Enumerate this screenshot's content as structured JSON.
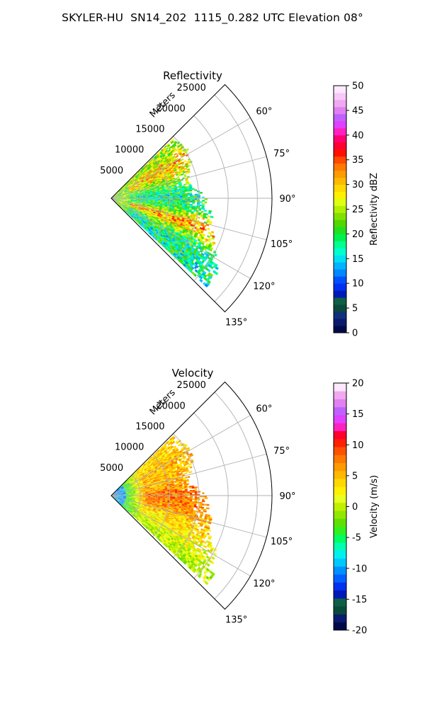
{
  "figure": {
    "suptitle": "SKYLER-HU  SN14_202  1115_0.282 UTC Elevation 08°"
  },
  "colors": {
    "reflectivity_scale": [
      "#000a4a",
      "#0b1a6e",
      "#10307a",
      "#0a4a3a",
      "#0e5f46",
      "#0018b8",
      "#0030f0",
      "#0050ff",
      "#0088ff",
      "#00b4ff",
      "#00e0f0",
      "#00ffd0",
      "#00ff90",
      "#00f050",
      "#20e020",
      "#50d800",
      "#80e000",
      "#b0f000",
      "#dfff10",
      "#fff000",
      "#ffd800",
      "#ffb800",
      "#ff9a00",
      "#ff7800",
      "#ff4800",
      "#ff1000",
      "#ff0030",
      "#ff0070",
      "#ff20c0",
      "#e040ff",
      "#c060ff",
      "#e080f0",
      "#f0a8f0",
      "#f8c8f8",
      "#fde8fd"
    ],
    "velocity_scale": [
      "#000a4a",
      "#0b1a6e",
      "#0a4a3a",
      "#0e5f46",
      "#0018b8",
      "#0030f0",
      "#0060ff",
      "#0090ff",
      "#00c8ff",
      "#00f0f0",
      "#00ffb0",
      "#00ff60",
      "#30f020",
      "#60e000",
      "#90e800",
      "#c0f000",
      "#e8ff20",
      "#fff000",
      "#ffd800",
      "#ffb800",
      "#ff9a00",
      "#ff7800",
      "#ff5000",
      "#ff2000",
      "#ff0030",
      "#ff20c0",
      "#e040ff",
      "#c060ff",
      "#e080f0",
      "#f0a8f0",
      "#fde8fd"
    ]
  },
  "chart_data": [
    {
      "type": "heatmap",
      "projection": "polar-sector",
      "title": "Reflectivity",
      "radial_label": "Meters",
      "radial_ticks": [
        5000,
        10000,
        15000,
        20000,
        25000
      ],
      "radial_range": [
        0,
        27500
      ],
      "angle_ticks_deg": [
        60,
        75,
        90,
        105,
        120,
        135
      ],
      "angle_tick_labels": [
        "60°",
        "75°",
        "90°",
        "105°",
        "120°",
        "135°"
      ],
      "angle_range_deg": [
        45,
        135
      ],
      "grid": true,
      "colorbar": {
        "label": "Reflectivity dBZ",
        "range": [
          0,
          50
        ],
        "ticks": [
          0,
          5,
          10,
          15,
          20,
          25,
          30,
          35,
          40,
          45,
          50
        ]
      },
      "approx_field": [
        {
          "az_deg": 52,
          "r_max_m": 15000,
          "value": 25
        },
        {
          "az_deg": 60,
          "r_max_m": 15500,
          "value": 30
        },
        {
          "az_deg": 68,
          "r_max_m": 14500,
          "value": 28
        },
        {
          "az_deg": 78,
          "r_max_m": 13000,
          "value": 22
        },
        {
          "az_deg": 88,
          "r_max_m": 16000,
          "value": 18
        },
        {
          "az_deg": 98,
          "r_max_m": 17000,
          "value": 20
        },
        {
          "az_deg": 108,
          "r_max_m": 18000,
          "value": 33
        },
        {
          "az_deg": 118,
          "r_max_m": 20500,
          "value": 20
        },
        {
          "az_deg": 126,
          "r_max_m": 22000,
          "value": 18
        }
      ]
    },
    {
      "type": "heatmap",
      "projection": "polar-sector",
      "title": "Velocity",
      "radial_label": "Meters",
      "radial_ticks": [
        5000,
        10000,
        15000,
        20000,
        25000
      ],
      "radial_range": [
        0,
        27500
      ],
      "angle_ticks_deg": [
        60,
        75,
        90,
        105,
        120,
        135
      ],
      "angle_tick_labels": [
        "60°",
        "75°",
        "90°",
        "105°",
        "120°",
        "135°"
      ],
      "angle_range_deg": [
        45,
        135
      ],
      "grid": true,
      "colorbar": {
        "label": "Velocity (m/s)",
        "range": [
          -20,
          20
        ],
        "ticks": [
          -20,
          -15,
          -10,
          -5,
          0,
          5,
          10,
          15,
          20
        ]
      },
      "approx_field": [
        {
          "az_deg": 52,
          "r_max_m": 15000,
          "value": 4
        },
        {
          "az_deg": 60,
          "r_max_m": 15500,
          "value": 5
        },
        {
          "az_deg": 70,
          "r_max_m": 14500,
          "value": 5
        },
        {
          "az_deg": 80,
          "r_max_m": 13000,
          "value": 6
        },
        {
          "az_deg": 90,
          "r_max_m": 16000,
          "value": 8
        },
        {
          "az_deg": 100,
          "r_max_m": 17000,
          "value": 7
        },
        {
          "az_deg": 110,
          "r_max_m": 18000,
          "value": 4
        },
        {
          "az_deg": 120,
          "r_max_m": 20500,
          "value": 2
        },
        {
          "az_deg": 128,
          "r_max_m": 22000,
          "value": 0
        }
      ]
    }
  ]
}
